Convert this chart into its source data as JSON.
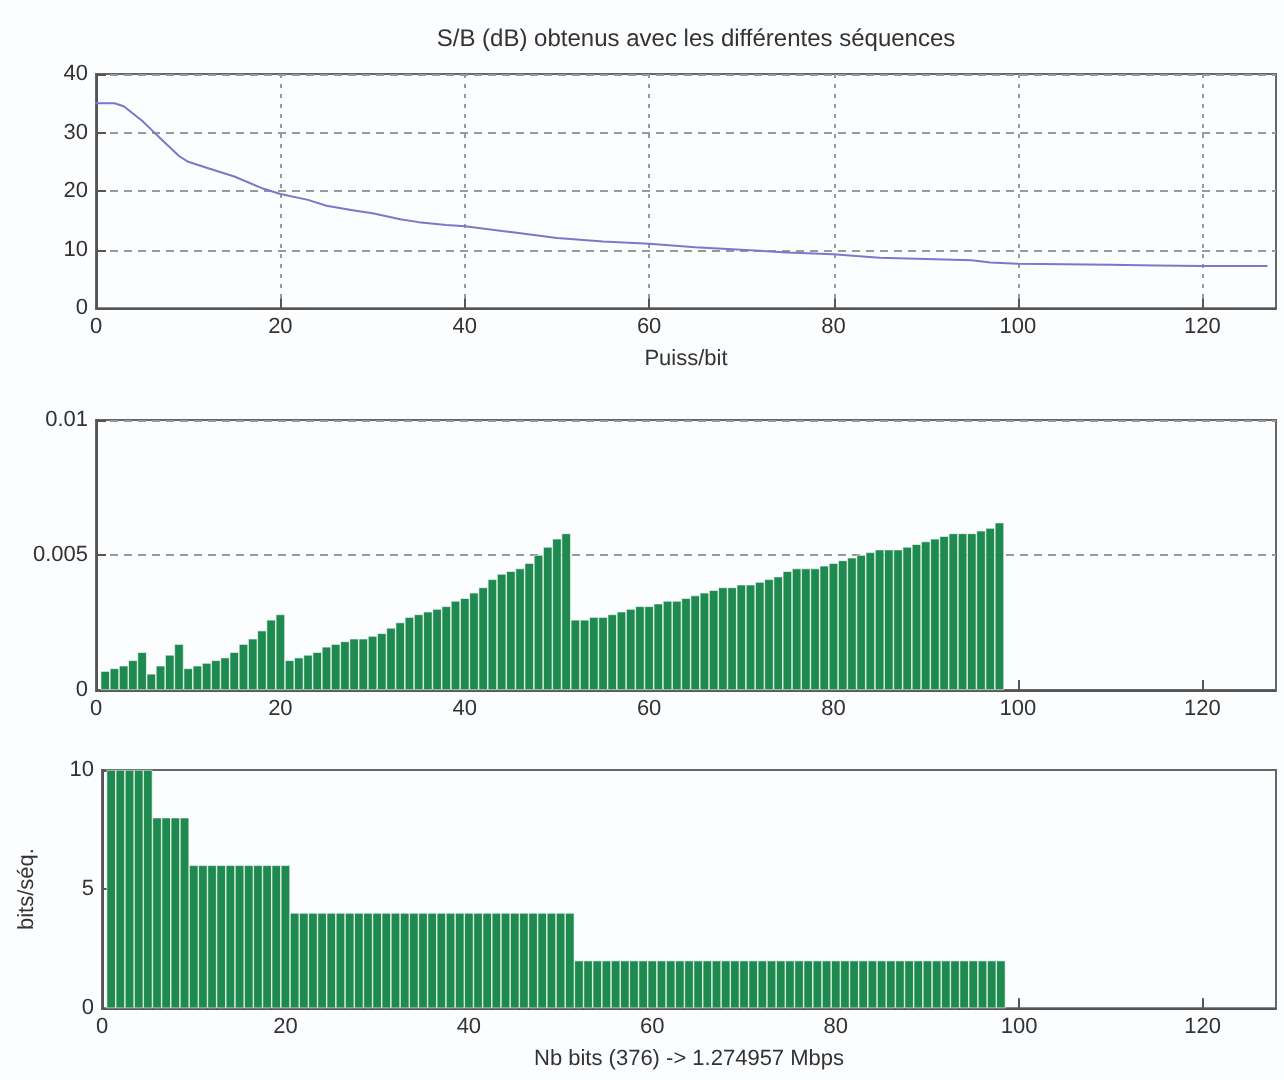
{
  "chart_data": [
    {
      "type": "line",
      "title": "S/B (dB) obtenus avec les différentes séquences",
      "xlabel": "Puiss/bit",
      "xlim": [
        0,
        128
      ],
      "xticks": [
        0,
        20,
        40,
        60,
        80,
        100,
        120
      ],
      "ylim": [
        0,
        40
      ],
      "yticks": [
        0,
        10,
        20,
        30,
        40
      ],
      "grid": true,
      "line_style": "solid",
      "marker": "none",
      "series": [
        {
          "color": "#7a78c8",
          "x": [
            0,
            2,
            3,
            5,
            6,
            7,
            8,
            9,
            10,
            12,
            15,
            18,
            20,
            23,
            25,
            28,
            30,
            33,
            35,
            38,
            40,
            45,
            50,
            55,
            60,
            65,
            70,
            75,
            80,
            85,
            90,
            95,
            97,
            100,
            105,
            110,
            115,
            120,
            127
          ],
          "values": [
            35,
            35,
            34.5,
            32,
            30.5,
            29,
            27.5,
            26,
            25,
            24,
            22.5,
            20.5,
            19.5,
            18.5,
            17.5,
            16.7,
            16.2,
            15.2,
            14.7,
            14.2,
            14,
            13,
            12,
            11.4,
            11,
            10.4,
            10,
            9.5,
            9.2,
            8.6,
            8.4,
            8.2,
            7.8,
            7.6,
            7.5,
            7.4,
            7.3,
            7.2,
            7.2
          ]
        }
      ]
    },
    {
      "type": "bar",
      "xlim": [
        0,
        128
      ],
      "xticks": [
        0,
        20,
        40,
        60,
        80,
        100,
        120
      ],
      "ylim": [
        0,
        0.01
      ],
      "yticks": [
        0,
        0.005,
        0.01
      ],
      "grid": "y",
      "series": [
        {
          "color": "#1f8a50",
          "x": [
            1,
            2,
            3,
            4,
            5,
            6,
            7,
            8,
            9,
            10,
            11,
            12,
            13,
            14,
            15,
            16,
            17,
            18,
            19,
            20,
            21,
            22,
            23,
            24,
            25,
            26,
            27,
            28,
            29,
            30,
            31,
            32,
            33,
            34,
            35,
            36,
            37,
            38,
            39,
            40,
            41,
            42,
            43,
            44,
            45,
            46,
            47,
            48,
            49,
            50,
            51,
            52,
            53,
            54,
            55,
            56,
            57,
            58,
            59,
            60,
            61,
            62,
            63,
            64,
            65,
            66,
            67,
            68,
            69,
            70,
            71,
            72,
            73,
            74,
            75,
            76,
            77,
            78,
            79,
            80,
            81,
            82,
            83,
            84,
            85,
            86,
            87,
            88,
            89,
            90,
            91,
            92,
            93,
            94,
            95,
            96,
            97,
            98
          ],
          "values": [
            0.0007,
            0.0008,
            0.0009,
            0.0011,
            0.0014,
            0.0006,
            0.0009,
            0.0013,
            0.0017,
            0.0008,
            0.0009,
            0.001,
            0.0011,
            0.0012,
            0.0014,
            0.0017,
            0.0019,
            0.0022,
            0.0026,
            0.0028,
            0.0011,
            0.0012,
            0.0013,
            0.0014,
            0.0016,
            0.0017,
            0.0018,
            0.0019,
            0.0019,
            0.002,
            0.0021,
            0.0023,
            0.0025,
            0.0027,
            0.0028,
            0.0029,
            0.003,
            0.0031,
            0.0033,
            0.0034,
            0.0036,
            0.0038,
            0.0041,
            0.0043,
            0.0044,
            0.0045,
            0.0047,
            0.005,
            0.0053,
            0.0056,
            0.0058,
            0.0026,
            0.0026,
            0.0027,
            0.0027,
            0.0028,
            0.0029,
            0.003,
            0.0031,
            0.0031,
            0.0032,
            0.0033,
            0.0033,
            0.0034,
            0.0035,
            0.0036,
            0.0037,
            0.0038,
            0.0038,
            0.0039,
            0.0039,
            0.004,
            0.0041,
            0.0042,
            0.0044,
            0.0045,
            0.0045,
            0.0045,
            0.0046,
            0.0047,
            0.0048,
            0.0049,
            0.005,
            0.0051,
            0.0052,
            0.0052,
            0.0052,
            0.0053,
            0.0054,
            0.0055,
            0.0056,
            0.0057,
            0.0058,
            0.0058,
            0.0058,
            0.0059,
            0.006,
            0.0062
          ]
        }
      ]
    },
    {
      "type": "bar",
      "xlabel": "Nb bits (376) -> 1.274957 Mbps",
      "ylabel": "bits/séq.",
      "xlim": [
        0,
        128
      ],
      "xticks": [
        0,
        20,
        40,
        60,
        80,
        100,
        120
      ],
      "ylim": [
        0,
        10
      ],
      "yticks": [
        0,
        5,
        10
      ],
      "series": [
        {
          "color": "#1f8a50",
          "x": [
            1,
            2,
            3,
            4,
            5,
            6,
            7,
            8,
            9,
            10,
            11,
            12,
            13,
            14,
            15,
            16,
            17,
            18,
            19,
            20,
            21,
            22,
            23,
            24,
            25,
            26,
            27,
            28,
            29,
            30,
            31,
            32,
            33,
            34,
            35,
            36,
            37,
            38,
            39,
            40,
            41,
            42,
            43,
            44,
            45,
            46,
            47,
            48,
            49,
            50,
            51,
            52,
            53,
            54,
            55,
            56,
            57,
            58,
            59,
            60,
            61,
            62,
            63,
            64,
            65,
            66,
            67,
            68,
            69,
            70,
            71,
            72,
            73,
            74,
            75,
            76,
            77,
            78,
            79,
            80,
            81,
            82,
            83,
            84,
            85,
            86,
            87,
            88,
            89,
            90,
            91,
            92,
            93,
            94,
            95,
            96,
            97,
            98
          ],
          "values": [
            10,
            10,
            10,
            10,
            10,
            8,
            8,
            8,
            8,
            6,
            6,
            6,
            6,
            6,
            6,
            6,
            6,
            6,
            6,
            6,
            4,
            4,
            4,
            4,
            4,
            4,
            4,
            4,
            4,
            4,
            4,
            4,
            4,
            4,
            4,
            4,
            4,
            4,
            4,
            4,
            4,
            4,
            4,
            4,
            4,
            4,
            4,
            4,
            4,
            4,
            4,
            2,
            2,
            2,
            2,
            2,
            2,
            2,
            2,
            2,
            2,
            2,
            2,
            2,
            2,
            2,
            2,
            2,
            2,
            2,
            2,
            2,
            2,
            2,
            2,
            2,
            2,
            2,
            2,
            2,
            2,
            2,
            2,
            2,
            2,
            2,
            2,
            2,
            2,
            2,
            2,
            2,
            2,
            2,
            2,
            2,
            2,
            2
          ]
        }
      ]
    }
  ]
}
